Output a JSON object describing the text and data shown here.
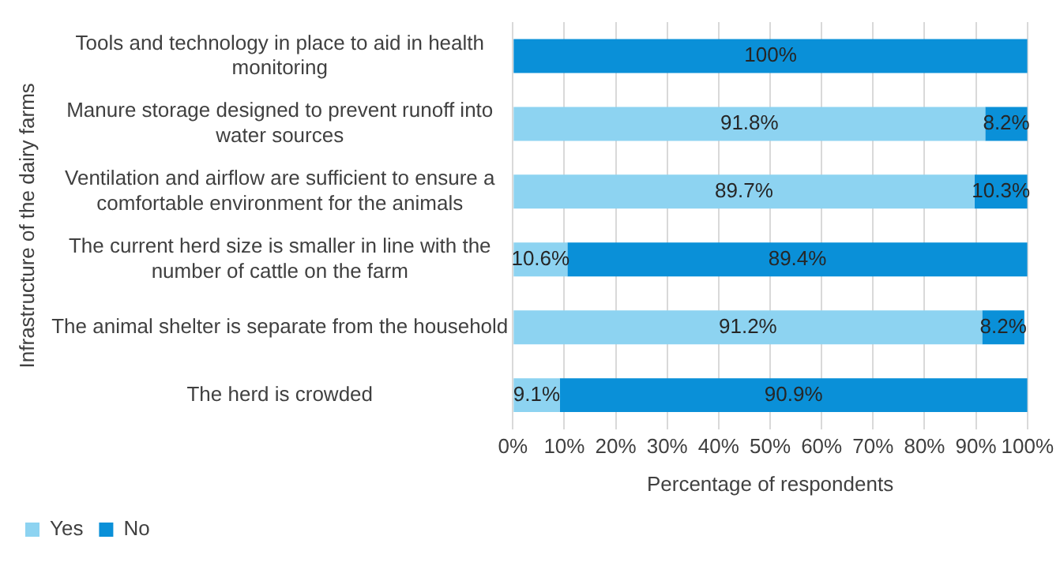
{
  "chart_data": {
    "type": "bar",
    "orientation": "horizontal",
    "stacked": true,
    "categories": [
      "Tools and technology in place to aid in health monitoring",
      "Manure storage designed to prevent runoff into water sources",
      "Ventilation and airflow are sufficient to ensure a comfortable environment for the animals",
      "The current herd size is smaller in line with the number of cattle on the farm",
      "The animal shelter is separate from the household",
      "The herd is crowded"
    ],
    "series": [
      {
        "name": "Yes",
        "color": "#8dd3f1",
        "values": [
          0,
          91.8,
          89.7,
          10.6,
          91.2,
          9.1
        ],
        "value_labels": [
          null,
          "91.8%",
          "89.7%",
          "10.6%",
          "91.2%",
          "9.1%"
        ]
      },
      {
        "name": "No",
        "color": "#0a90d8",
        "values": [
          100,
          8.2,
          10.3,
          89.4,
          8.2,
          90.9
        ],
        "value_labels": [
          "100%",
          "8.2%",
          "10.3%",
          "89.4%",
          "8.2%",
          "90.9%"
        ]
      }
    ],
    "xlim": [
      0,
      100
    ],
    "xticks": [
      {
        "value": 0,
        "label": "0%"
      },
      {
        "value": 10,
        "label": "10%"
      },
      {
        "value": 20,
        "label": "20%"
      },
      {
        "value": 30,
        "label": "30%"
      },
      {
        "value": 40,
        "label": "40%"
      },
      {
        "value": 50,
        "label": "50%"
      },
      {
        "value": 60,
        "label": "60%"
      },
      {
        "value": 70,
        "label": "70%"
      },
      {
        "value": 80,
        "label": "80%"
      },
      {
        "value": 90,
        "label": "90%"
      },
      {
        "value": 100,
        "label": "100%"
      }
    ],
    "xlabel": "Percentage of respondents",
    "ylabel": "Infrastructure of the dairy farms",
    "grid": "x",
    "legend": "bottom left"
  }
}
